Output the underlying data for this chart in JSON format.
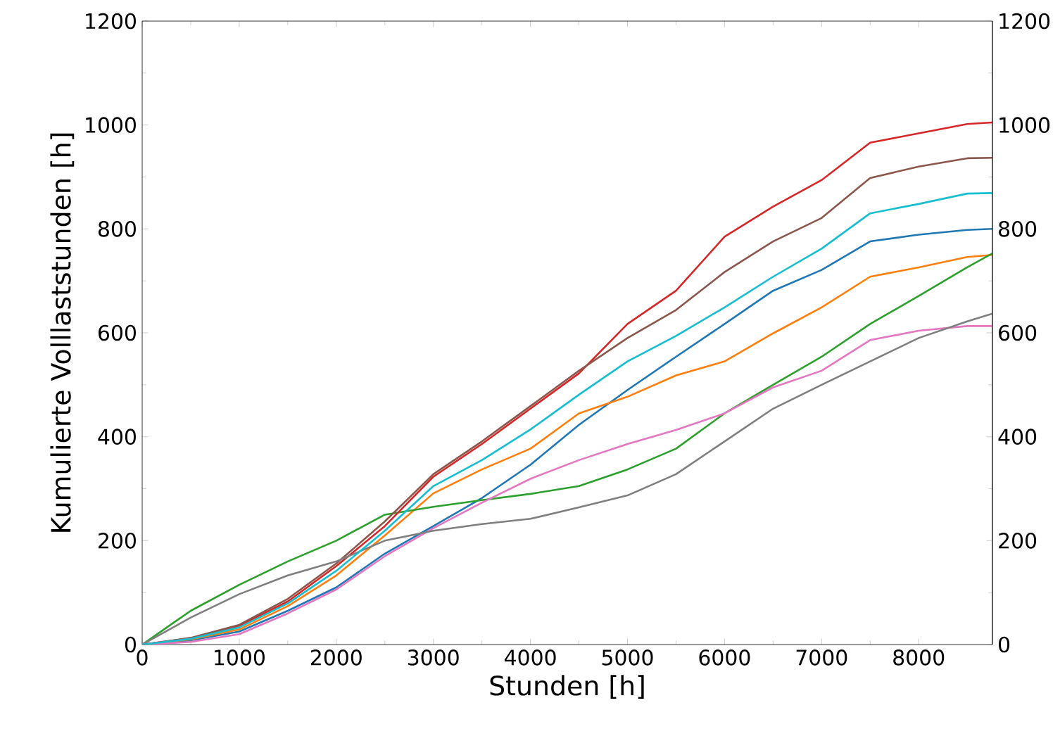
{
  "chart_data": {
    "type": "line",
    "xlabel": "Stunden [h]",
    "ylabel": "Kumulierte Volllaststunden [h]",
    "x": [
      0,
      500,
      1000,
      1500,
      2000,
      2500,
      3000,
      3500,
      4000,
      4500,
      5000,
      5500,
      6000,
      6500,
      7000,
      7500,
      8000,
      8500,
      8760
    ],
    "xlim": [
      0,
      8760
    ],
    "xticks": [
      0,
      1000,
      2000,
      3000,
      4000,
      5000,
      6000,
      7000,
      8000
    ],
    "ylim": [
      0,
      1200
    ],
    "yticks": [
      0,
      200,
      400,
      600,
      800,
      1000,
      1200
    ],
    "y2lim": [
      0,
      1200
    ],
    "y2ticks": [
      0,
      200,
      400,
      600,
      800,
      1000,
      1200
    ],
    "marker": "none",
    "line_style": "solid",
    "series": [
      {
        "color": "#1f77b4",
        "values": [
          0,
          8,
          25,
          65,
          110,
          175,
          228,
          282,
          346,
          423,
          490,
          554,
          617,
          681,
          721,
          776,
          789,
          798,
          800
        ]
      },
      {
        "color": "#ff7f0e",
        "values": [
          0,
          10,
          29,
          74,
          133,
          210,
          291,
          337,
          377,
          445,
          477,
          518,
          545,
          599,
          649,
          708,
          726,
          746,
          750
        ]
      },
      {
        "color": "#2ca02c",
        "values": [
          0,
          65,
          115,
          160,
          200,
          250,
          265,
          278,
          290,
          305,
          337,
          377,
          445,
          500,
          554,
          617,
          671,
          726,
          753
        ]
      },
      {
        "color": "#d62728",
        "values": [
          0,
          12,
          36,
          83,
          151,
          228,
          323,
          386,
          454,
          522,
          617,
          681,
          785,
          843,
          894,
          966,
          984,
          1002,
          1005
        ]
      },
      {
        "color": "#8c564b",
        "values": [
          0,
          13,
          38,
          88,
          156,
          237,
          328,
          391,
          459,
          527,
          590,
          644,
          717,
          776,
          821,
          898,
          920,
          936,
          937
        ]
      },
      {
        "color": "#e377c2",
        "values": [
          0,
          5,
          20,
          60,
          106,
          170,
          224,
          273,
          319,
          355,
          386,
          413,
          445,
          495,
          527,
          586,
          604,
          613,
          613
        ]
      },
      {
        "color": "#7f7f7f",
        "values": [
          0,
          52,
          97,
          133,
          160,
          200,
          219,
          232,
          242,
          264,
          287,
          328,
          391,
          454,
          500,
          545,
          590,
          622,
          637
        ]
      },
      {
        "color": "#17becf",
        "values": [
          0,
          11,
          33,
          79,
          142,
          219,
          305,
          355,
          414,
          481,
          545,
          594,
          649,
          708,
          762,
          830,
          848,
          868,
          869
        ]
      }
    ]
  }
}
